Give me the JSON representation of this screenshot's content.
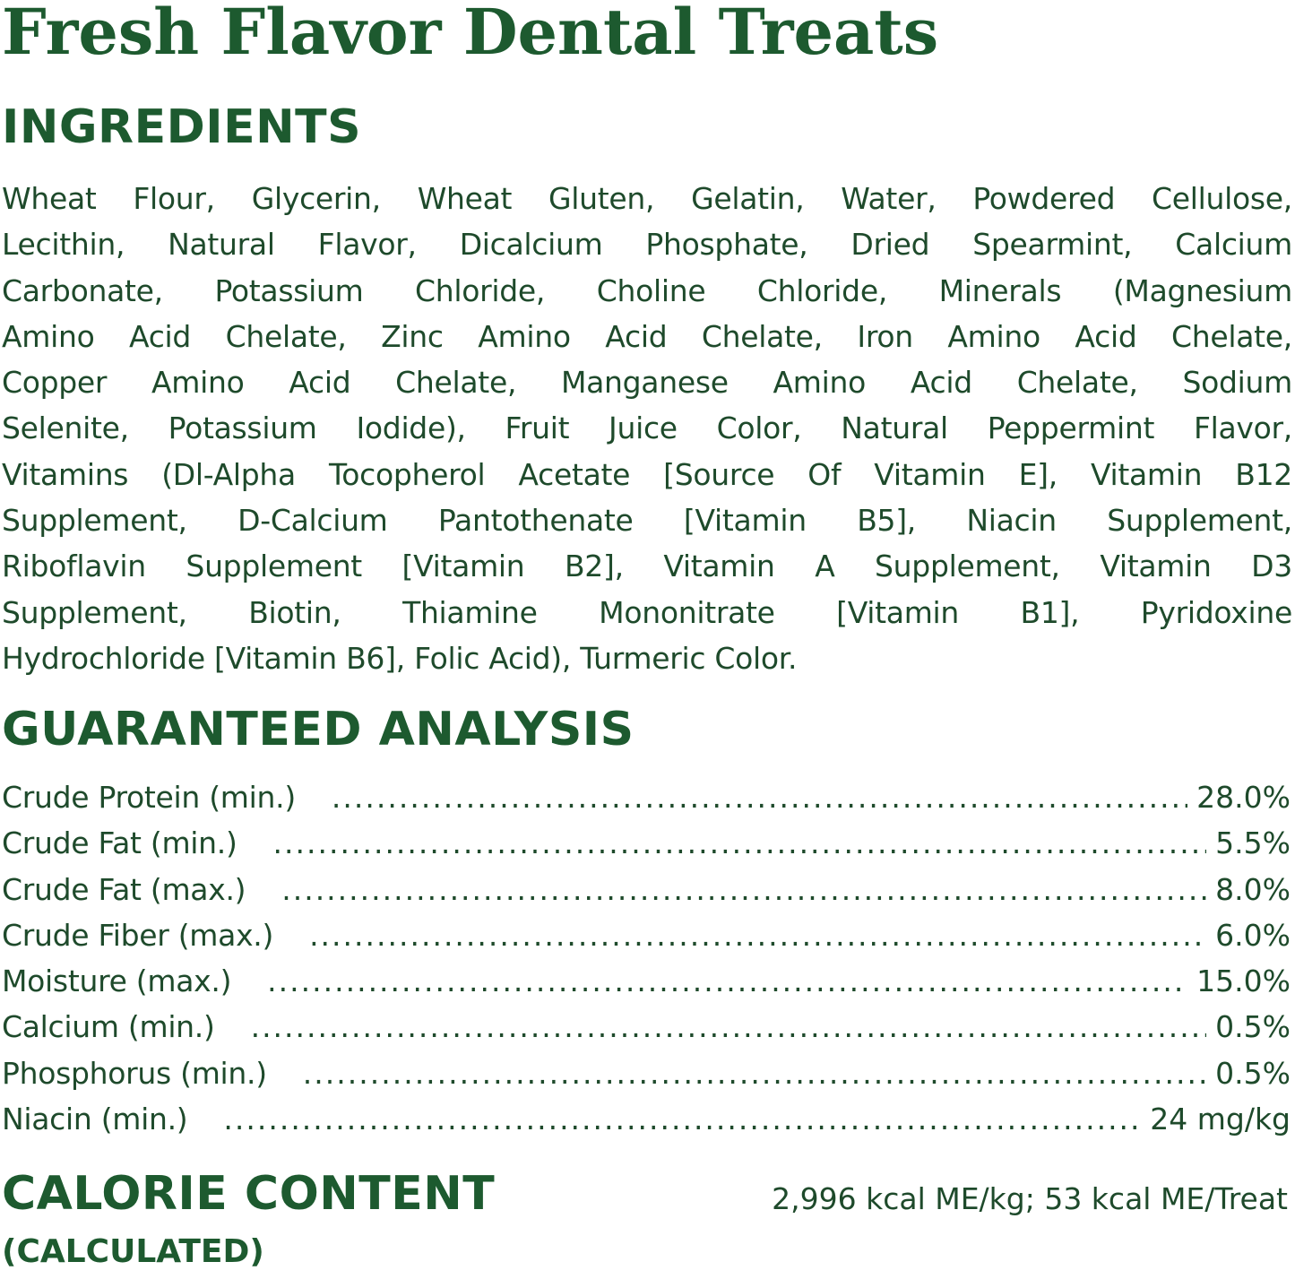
{
  "title": "Fresh Flavor Dental Treats",
  "ingredients": {
    "heading": "INGREDIENTS",
    "lines": [
      "Wheat Flour, Glycerin, Wheat Gluten, Gelatin, Water, Powdered Cellulose,",
      "Lecithin, Natural Flavor, Dicalcium Phosphate, Dried Spearmint, Calcium",
      "Carbonate, Potassium Chloride, Choline Chloride, Minerals (Magnesium",
      "Amino Acid Chelate, Zinc Amino Acid Chelate, Iron Amino Acid Chelate,",
      "Copper Amino Acid Chelate, Manganese Amino Acid Chelate, Sodium",
      "Selenite, Potassium Iodide), Fruit Juice Color, Natural Peppermint Flavor,",
      "Vitamins (Dl-Alpha Tocopherol Acetate [Source Of Vitamin E], Vitamin B12",
      "Supplement, D-Calcium Pantothenate [Vitamin B5], Niacin Supplement,",
      "Riboflavin Supplement [Vitamin B2], Vitamin A Supplement, Vitamin D3",
      "Supplement, Biotin, Thiamine Mononitrate [Vitamin B1], Pyridoxine",
      "Hydrochloride [Vitamin B6], Folic Acid), Turmeric Color."
    ]
  },
  "analysis": {
    "heading": "GUARANTEED ANALYSIS",
    "rows": [
      {
        "label": "Crude Protein (min.)",
        "value": "28.0%"
      },
      {
        "label": "Crude Fat (min.)",
        "value": "5.5%"
      },
      {
        "label": "Crude Fat (max.)",
        "value": "8.0%"
      },
      {
        "label": "Crude Fiber (max.)",
        "value": "6.0%"
      },
      {
        "label": "Moisture (max.)",
        "value": "15.0%"
      },
      {
        "label": "Calcium (min.)",
        "value": "0.5%"
      },
      {
        "label": "Phosphorus (min.)",
        "value": "0.5%"
      },
      {
        "label": "Niacin (min.)",
        "value": "24 mg/kg"
      }
    ]
  },
  "calorie": {
    "heading": "CALORIE CONTENT",
    "subheading": "(CALCULATED)",
    "value": "2,996 kcal ME/kg; 53 kcal ME/Treat"
  },
  "colors": {
    "heading": "#1d5a2f",
    "text": "#1e4a2b"
  }
}
